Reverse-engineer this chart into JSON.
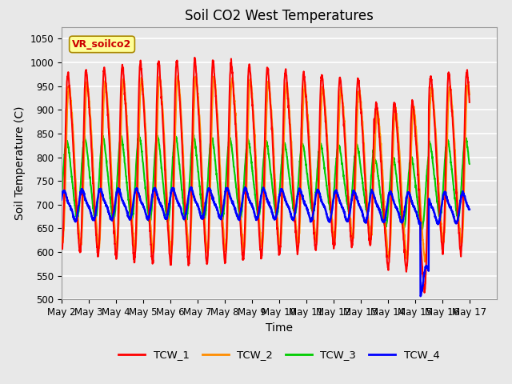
{
  "title": "Soil CO2 West Temperatures",
  "xlabel": "Time",
  "ylabel": "Soil Temperature (C)",
  "ylim": [
    500,
    1075
  ],
  "yticks": [
    500,
    550,
    600,
    650,
    700,
    750,
    800,
    850,
    900,
    950,
    1000,
    1050
  ],
  "xlim": [
    1,
    17
  ],
  "x_ticks_labels": [
    "May 2",
    "May 3",
    "May 4",
    "May 5",
    "May 6",
    "May 7",
    "May 8",
    "May 9",
    "May 10",
    "May 11",
    "May 12",
    "May 13",
    "May 14",
    "May 15",
    "May 16",
    "May 17"
  ],
  "series_colors": [
    "#FF0000",
    "#FF8C00",
    "#00CC00",
    "#0000FF"
  ],
  "series_names": [
    "TCW_1",
    "TCW_2",
    "TCW_3",
    "TCW_4"
  ],
  "annotation_text": "VR_soilco2",
  "annotation_color": "#CC0000",
  "annotation_bg": "#FFFF99",
  "annotation_border": "#AA8800",
  "background_color": "#E8E8E8",
  "grid_color": "#FFFFFF",
  "linewidth": 1.5,
  "n_days": 15,
  "points_per_day": 144,
  "cycles_per_day": 1.5
}
